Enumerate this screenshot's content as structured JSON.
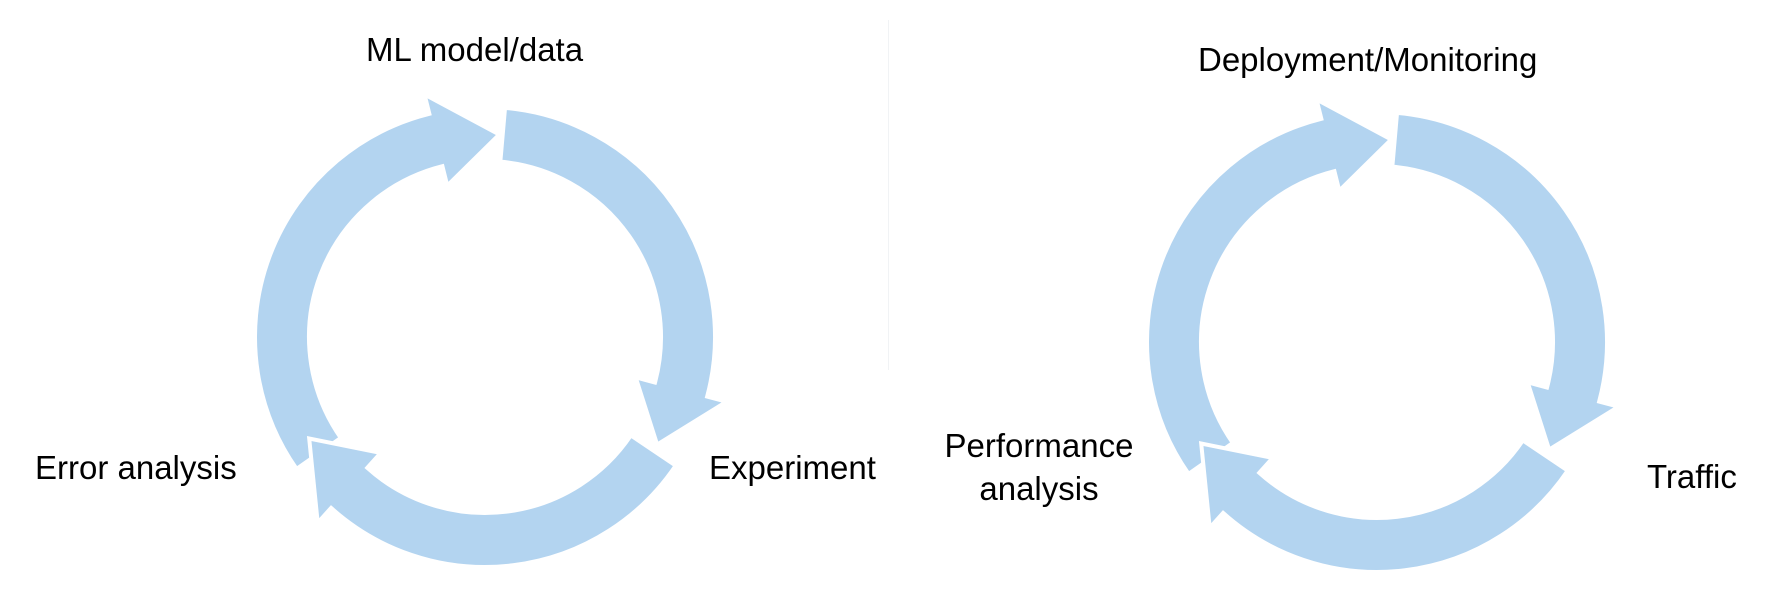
{
  "arrow_color": "#b3d4f0",
  "cycles": [
    {
      "labels": {
        "top": "ML model/data",
        "right": "Experiment",
        "left": "Error analysis"
      }
    },
    {
      "labels": {
        "top": "Deployment/Monitoring",
        "right": "Traffic",
        "left_line1": "Performance",
        "left_line2": "analysis"
      }
    }
  ]
}
